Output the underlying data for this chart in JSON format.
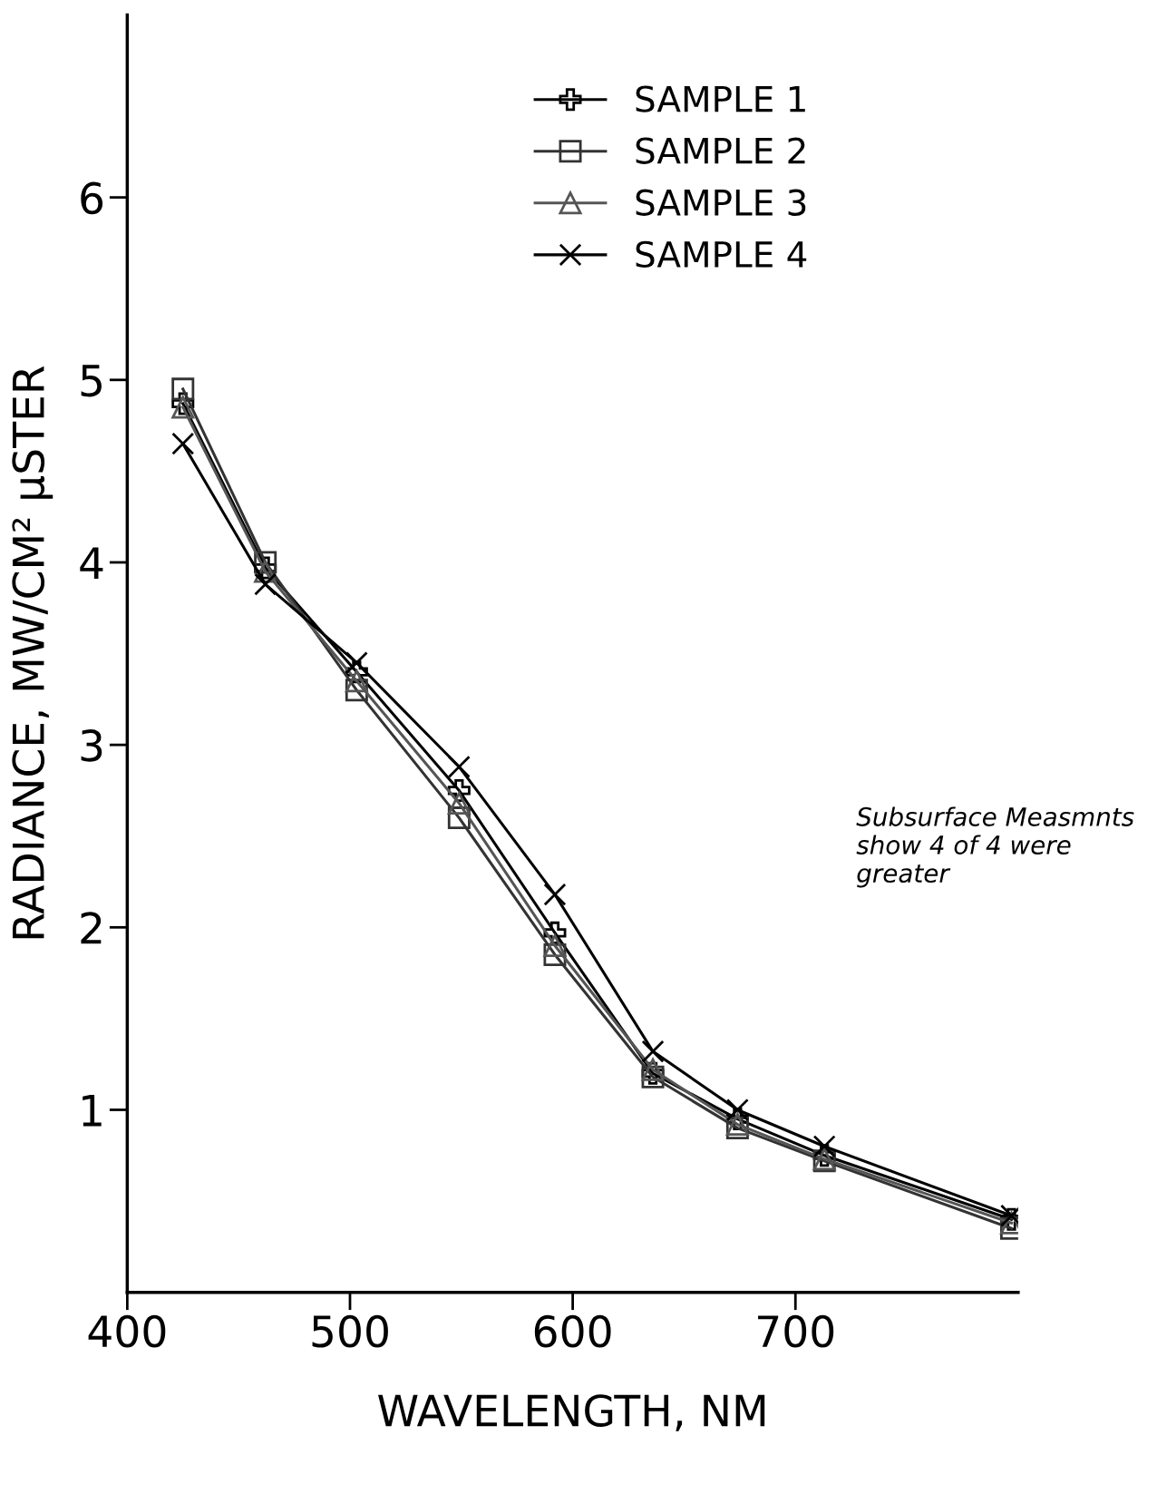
{
  "chart_data": {
    "type": "line",
    "xlabel": "WAVELENGTH, NM",
    "ylabel": "RADIANCE, MW/CM² μSTER",
    "x": [
      425,
      462,
      503,
      549,
      592,
      636,
      674,
      713,
      797
    ],
    "series": [
      {
        "name": "SAMPLE 1",
        "color": "#000000",
        "marker": "cross",
        "values": [
          4.87,
          3.97,
          3.4,
          2.75,
          1.97,
          1.2,
          0.95,
          0.75,
          0.4
        ]
      },
      {
        "name": "SAMPLE 2",
        "color": "#333333",
        "marker": "square",
        "values": [
          4.95,
          4.0,
          3.3,
          2.6,
          1.85,
          1.18,
          0.9,
          0.72,
          0.35
        ]
      },
      {
        "name": "SAMPLE 3",
        "color": "#555555",
        "marker": "triangle",
        "values": [
          4.85,
          3.95,
          3.35,
          2.68,
          1.9,
          1.22,
          0.92,
          0.73,
          0.38
        ]
      },
      {
        "name": "SAMPLE 4",
        "color": "#000000",
        "marker": "x",
        "values": [
          4.65,
          3.88,
          3.45,
          2.88,
          2.18,
          1.32,
          1.0,
          0.8,
          0.42
        ]
      }
    ],
    "xlim": [
      400,
      800
    ],
    "xticks": [
      400,
      500,
      600,
      700
    ],
    "ylim": [
      0,
      7
    ],
    "yticks": [
      1,
      2,
      3,
      4,
      5,
      6
    ],
    "annotations": [
      "Subsurface Measmnts show 4 of 4 were greater"
    ],
    "legend": "top right",
    "grid": false
  }
}
